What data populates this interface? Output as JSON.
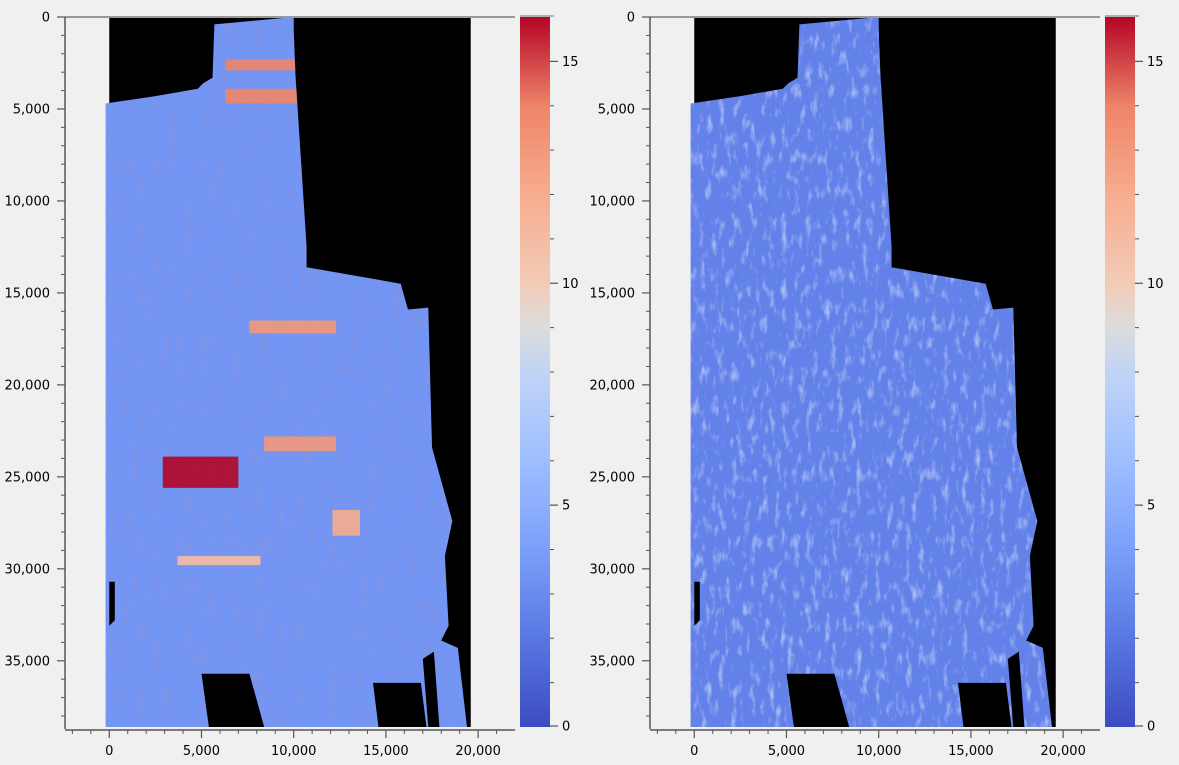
{
  "chart_data": [
    {
      "type": "heatmap",
      "panel": "left",
      "title": "",
      "xlabel": "",
      "ylabel": "",
      "xlim": [
        -2400,
        22000
      ],
      "ylim": [
        38600,
        0
      ],
      "y_axis_inverted": true,
      "x_ticks": [
        0,
        5000,
        10000,
        15000,
        20000
      ],
      "x_tick_labels": [
        "0",
        "5,000",
        "10,000",
        "15,000",
        "20,000"
      ],
      "y_ticks": [
        0,
        5000,
        10000,
        15000,
        20000,
        25000,
        30000,
        35000
      ],
      "y_tick_labels": [
        "0",
        "5,000",
        "10,000",
        "15,000",
        "20,000",
        "25,000",
        "30,000",
        "35,000"
      ],
      "background_color": "#000000",
      "colorbar": {
        "colormap": "coolwarm",
        "range": [
          0,
          16
        ],
        "ticks": [
          0,
          5,
          10,
          15
        ],
        "tick_labels": [
          "0",
          "5",
          "10",
          "15"
        ]
      },
      "dominant_level": 3.5,
      "high_value_regions": [
        {
          "x": [
            2900,
            7000
          ],
          "y": [
            23900,
            25600
          ],
          "value": 16
        },
        {
          "x": [
            6300,
            10400
          ],
          "y": [
            2300,
            2900
          ],
          "value": 14
        },
        {
          "x": [
            6300,
            10400
          ],
          "y": [
            3900,
            4700
          ],
          "value": 14
        },
        {
          "x": [
            7600,
            12300
          ],
          "y": [
            16500,
            17200
          ],
          "value": 13
        },
        {
          "x": [
            8400,
            12300
          ],
          "y": [
            22800,
            23600
          ],
          "value": 13
        },
        {
          "x": [
            3700,
            8200
          ],
          "y": [
            29300,
            29800
          ],
          "value": 11
        },
        {
          "x": [
            12100,
            13600
          ],
          "y": [
            26800,
            28200
          ],
          "value": 12
        }
      ]
    },
    {
      "type": "heatmap",
      "panel": "right",
      "title": "",
      "xlabel": "",
      "ylabel": "",
      "xlim": [
        -2400,
        22000
      ],
      "ylim": [
        38600,
        0
      ],
      "y_axis_inverted": true,
      "x_ticks": [
        0,
        5000,
        10000,
        15000,
        20000
      ],
      "x_tick_labels": [
        "0",
        "5,000",
        "10,000",
        "15,000",
        "20,000"
      ],
      "y_ticks": [
        0,
        5000,
        10000,
        15000,
        20000,
        25000,
        30000,
        35000
      ],
      "y_tick_labels": [
        "0",
        "5,000",
        "10,000",
        "15,000",
        "20,000",
        "25,000",
        "30,000",
        "35,000"
      ],
      "background_color": "#000000",
      "colorbar": {
        "colormap": "coolwarm",
        "range": [
          0,
          16
        ],
        "ticks": [
          0,
          5,
          10,
          15
        ],
        "tick_labels": [
          "0",
          "5",
          "10",
          "15"
        ]
      },
      "dominant_level": 2.5,
      "high_value_regions": []
    }
  ]
}
